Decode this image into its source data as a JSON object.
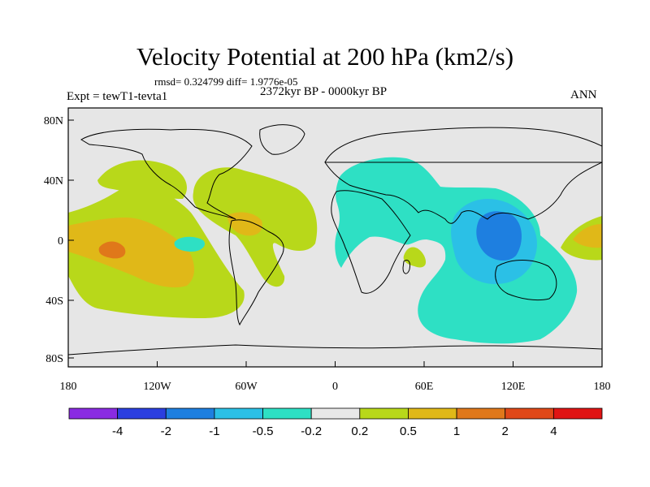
{
  "header": {
    "title": "Velocity Potential at 200 hPa (km2/s)",
    "stats": "rmsd= 0.324799 diff= 1.9776e-05",
    "experiment": "Expt = tewT1-tevta1",
    "period": "2372kyr BP - 0000kyr BP",
    "season": "ANN"
  },
  "axes": {
    "lat_labels": [
      "80N",
      "40N",
      "0",
      "40S",
      "80S"
    ],
    "lon_labels": [
      "180",
      "120W",
      "60W",
      "0",
      "60E",
      "120E",
      "180"
    ]
  },
  "colorbar": {
    "labels": [
      "-4",
      "-2",
      "-1",
      "-0.5",
      "-0.2",
      "0.2",
      "0.5",
      "1",
      "2",
      "4"
    ],
    "colors": [
      "#8a2be2",
      "#2b3fe0",
      "#1e7fe0",
      "#2bc0e6",
      "#2ee0c4",
      "#e8e8e8",
      "#b8d81a",
      "#e0b818",
      "#e0781a",
      "#e04818",
      "#e01414"
    ]
  },
  "map_colors": {
    "background": "#e6e6e6",
    "neutral": "#e6e6e6",
    "light_pos": "#b8d81a",
    "mid_pos": "#e0b818",
    "strong_pos": "#e0781a",
    "light_neg": "#2ee0c4",
    "mid_neg": "#2bc0e6",
    "strong_neg": "#1e7fe0"
  }
}
